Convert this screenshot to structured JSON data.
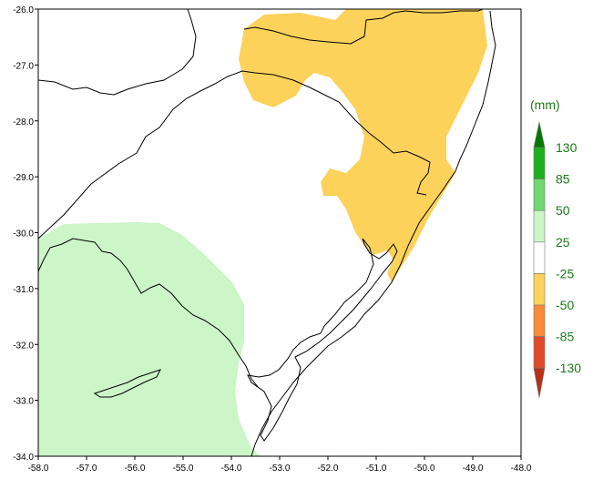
{
  "map": {
    "lon_range": [
      -58.0,
      -48.0
    ],
    "lat_range": [
      -34.0,
      -26.0
    ],
    "x_ticks": [
      "-58.0",
      "-57.0",
      "-56.0",
      "-55.0",
      "-54.0",
      "-53.0",
      "-52.0",
      "-51.0",
      "-50.0",
      "-49.0",
      "-48.0"
    ],
    "y_ticks": [
      "-26.0",
      "-27.0",
      "-28.0",
      "-29.0",
      "-30.0",
      "-31.0",
      "-32.0",
      "-33.0",
      "-34.0"
    ],
    "regions": [
      {
        "name": "negative-anomaly-area",
        "class": "-50 to -25",
        "color": "#fcd25a"
      },
      {
        "name": "positive-anomaly-area",
        "class": "25 to 50",
        "color": "#ccf5c8"
      }
    ]
  },
  "legend": {
    "unit": "(mm)",
    "labels": [
      "130",
      "85",
      "50",
      "25",
      "-25",
      "-50",
      "-85",
      "-130"
    ],
    "colors": [
      "#007a00",
      "#1cb01c",
      "#70d870",
      "#ccf5c8",
      "#ffffff",
      "#fcd25a",
      "#f98a3a",
      "#e04a28",
      "#b83018"
    ]
  }
}
